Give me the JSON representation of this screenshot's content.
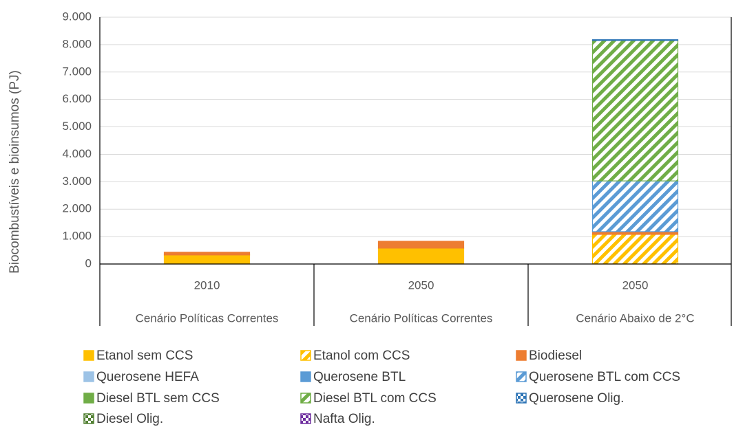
{
  "chart_data": {
    "type": "stacked_bar",
    "y_label": "Biocombustíveis e bioinsumos (PJ)",
    "categories": [
      "2010",
      "2050",
      "2050"
    ],
    "groups": [
      "Cenário Políticas Correntes",
      "Cenário Políticas Correntes",
      "Cenário Abaixo de 2°C"
    ],
    "ylim": [
      0,
      9000
    ],
    "yticks": [
      0,
      {
        "value": 1000,
        "label": "1.000"
      },
      {
        "value": 2000,
        "label": "2.000"
      },
      {
        "value": 3000,
        "label": "3.000"
      },
      {
        "value": 4000,
        "label": "4.000"
      },
      {
        "value": 5000,
        "label": "5.000"
      },
      {
        "value": 6000,
        "label": "6.000"
      },
      {
        "value": 7000,
        "label": "7.000"
      },
      {
        "value": 8000,
        "label": "8.000"
      },
      {
        "value": 9000,
        "label": "9.000"
      }
    ],
    "grid": true,
    "series": [
      {
        "name": "Etanol sem CCS",
        "color": "#ffc000",
        "pattern": "solid",
        "values": [
          330,
          580,
          0
        ]
      },
      {
        "name": "Etanol com CCS",
        "color": "#ffc000",
        "pattern": "diagonal",
        "values": [
          0,
          0,
          1080
        ]
      },
      {
        "name": "Biodiesel",
        "color": "#ed7d31",
        "pattern": "solid",
        "values": [
          100,
          250,
          100
        ]
      },
      {
        "name": "Querosene HEFA",
        "color": "#9dc3e6",
        "pattern": "solid",
        "values": [
          0,
          0,
          0
        ]
      },
      {
        "name": "Querosene BTL",
        "color": "#5b9bd5",
        "pattern": "solid",
        "values": [
          0,
          0,
          0
        ]
      },
      {
        "name": "Querosene BTL com CCS",
        "color": "#5b9bd5",
        "pattern": "diagonal",
        "values": [
          0,
          0,
          1850
        ]
      },
      {
        "name": "Diesel BTL sem CCS",
        "color": "#70ad47",
        "pattern": "solid",
        "values": [
          0,
          0,
          0
        ]
      },
      {
        "name": "Diesel BTL com CCS",
        "color": "#70ad47",
        "pattern": "diagonal",
        "values": [
          0,
          0,
          5120
        ]
      },
      {
        "name": "Querosene Olig.",
        "color": "#2e75b6",
        "pattern": "grid",
        "values": [
          0,
          0,
          30
        ]
      },
      {
        "name": "Diesel Olig.",
        "color": "#548235",
        "pattern": "grid",
        "values": [
          0,
          0,
          0
        ]
      },
      {
        "name": "Nafta Olig.",
        "color": "#7030a0",
        "pattern": "grid",
        "values": [
          0,
          0,
          0
        ]
      }
    ]
  }
}
